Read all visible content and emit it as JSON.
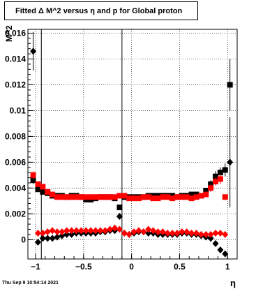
{
  "title": "Fitted Δ M^2 versus η and p for Global proton",
  "timestamp": "Thu Sep  9 10:54:14 2021",
  "chart_data": {
    "type": "scatter",
    "title": "Fitted Δ M^2 versus η and p for Global proton",
    "xlabel": "η",
    "ylabel": "M^2",
    "xlim": [
      -1.08,
      1.1
    ],
    "ylim": [
      -0.0015,
      0.0163
    ],
    "grid": true,
    "x_ticks": [
      -1,
      -0.5,
      0,
      0.5,
      1
    ],
    "x_tick_labels": [
      "−1",
      "−0.5",
      "0",
      "0.5",
      "1"
    ],
    "y_ticks": [
      0,
      0.002,
      0.004,
      0.006,
      0.008,
      0.01,
      0.012,
      0.014,
      0.016
    ],
    "y_tick_labels": [
      "0",
      "0.002",
      "0.004",
      "0.006",
      "0.008",
      "0.01",
      "0.012",
      "0.014",
      "0.016"
    ],
    "vertical_lines": [
      -0.94,
      -0.1
    ],
    "series": [
      {
        "marker": "square",
        "color": "#000000",
        "x": [
          -1.025,
          -0.975,
          -0.925,
          -0.875,
          -0.825,
          -0.775,
          -0.725,
          -0.675,
          -0.625,
          -0.575,
          -0.525,
          -0.475,
          -0.425,
          -0.375,
          -0.325,
          -0.275,
          -0.225,
          -0.175,
          -0.125,
          -0.075,
          -0.025,
          0.025,
          0.075,
          0.125,
          0.175,
          0.225,
          0.275,
          0.325,
          0.375,
          0.425,
          0.475,
          0.525,
          0.575,
          0.625,
          0.675,
          0.725,
          0.775,
          0.825,
          0.875,
          0.925,
          0.975,
          1.025
        ],
        "y": [
          0.0046,
          0.0039,
          0.0037,
          0.0036,
          0.0034,
          0.0034,
          0.0034,
          0.0033,
          0.0034,
          0.0034,
          0.0033,
          0.0031,
          0.0031,
          0.0032,
          0.0033,
          0.0033,
          0.0033,
          0.0032,
          0.0025,
          0.0033,
          0.0033,
          0.0033,
          0.0033,
          0.0033,
          0.0034,
          0.0034,
          0.0034,
          0.0034,
          0.0034,
          0.0034,
          0.0033,
          0.0034,
          0.0034,
          0.0035,
          0.0035,
          0.0034,
          0.0038,
          0.0043,
          0.0049,
          0.0052,
          0.0054,
          0.012
        ],
        "yerr": [
          0.0003,
          0.0001,
          0.0001,
          0.0001,
          0.0001,
          0.0001,
          0.0001,
          0.0001,
          0.0001,
          0.0001,
          0.0001,
          0.0001,
          0.0001,
          0.0001,
          0.0001,
          0.0001,
          0.0001,
          0.0001,
          0.0001,
          0.0001,
          0.0001,
          0.0001,
          0.0001,
          0.0001,
          0.0001,
          0.0001,
          0.0001,
          0.0001,
          0.0001,
          0.0001,
          0.0001,
          0.0001,
          0.0001,
          0.0001,
          0.0001,
          0.0001,
          0.0002,
          0.0003,
          0.0004,
          0.0004,
          0.0005,
          0.002
        ]
      },
      {
        "marker": "square",
        "color": "#ff0000",
        "x": [
          -1.025,
          -0.975,
          -0.925,
          -0.875,
          -0.825,
          -0.775,
          -0.725,
          -0.675,
          -0.625,
          -0.575,
          -0.525,
          -0.475,
          -0.425,
          -0.375,
          -0.325,
          -0.275,
          -0.225,
          -0.175,
          -0.125,
          -0.075,
          -0.025,
          0.025,
          0.075,
          0.125,
          0.175,
          0.225,
          0.275,
          0.325,
          0.375,
          0.425,
          0.475,
          0.525,
          0.575,
          0.625,
          0.675,
          0.725,
          0.775,
          0.825,
          0.875,
          0.925,
          0.975
        ],
        "y": [
          0.005,
          0.0043,
          0.0041,
          0.0037,
          0.0035,
          0.0033,
          0.0033,
          0.0033,
          0.0033,
          0.0033,
          0.0033,
          0.0033,
          0.0033,
          0.0033,
          0.0033,
          0.0033,
          0.0033,
          0.0033,
          0.0034,
          0.0034,
          0.0032,
          0.0032,
          0.0032,
          0.0033,
          0.0033,
          0.0032,
          0.0032,
          0.0033,
          0.0033,
          0.0032,
          0.0033,
          0.0033,
          0.0033,
          0.0032,
          0.0033,
          0.0034,
          0.0035,
          0.004,
          0.0045,
          0.0047,
          0.0033
        ],
        "yerr": [
          0.0003,
          0.0002,
          0.0002,
          0.0001,
          0.0001,
          0.0001,
          0.0001,
          0.0001,
          0.0001,
          0.0001,
          0.0001,
          0.0001,
          0.0001,
          0.0001,
          0.0001,
          0.0001,
          0.0001,
          0.0001,
          0.0001,
          0.0001,
          0.0001,
          0.0001,
          0.0001,
          0.0001,
          0.0001,
          0.0001,
          0.0001,
          0.0001,
          0.0001,
          0.0001,
          0.0001,
          0.0001,
          0.0001,
          0.0001,
          0.0001,
          0.0001,
          0.0002,
          0.0003,
          0.0003,
          0.0004,
          0.0002
        ]
      },
      {
        "marker": "diamond",
        "color": "#000000",
        "x": [
          -1.025,
          -0.975,
          -0.925,
          -0.875,
          -0.825,
          -0.775,
          -0.725,
          -0.675,
          -0.625,
          -0.575,
          -0.525,
          -0.475,
          -0.425,
          -0.375,
          -0.325,
          -0.275,
          -0.225,
          -0.175,
          -0.125,
          -0.075,
          -0.025,
          0.025,
          0.075,
          0.125,
          0.175,
          0.225,
          0.275,
          0.325,
          0.375,
          0.425,
          0.475,
          0.525,
          0.575,
          0.625,
          0.675,
          0.725,
          0.775,
          0.825,
          0.875,
          0.925,
          0.975,
          1.025
        ],
        "y": [
          0.0146,
          -0.0002,
          0.0001,
          0.0001,
          0.0001,
          0.0002,
          0.0003,
          0.0004,
          0.0004,
          0.0005,
          0.0005,
          0.0005,
          0.0005,
          0.0005,
          0.0006,
          0.0006,
          0.0007,
          0.0007,
          0.0018,
          0.0005,
          0.0004,
          0.0005,
          0.0006,
          0.0006,
          0.0005,
          0.0005,
          0.0004,
          0.0004,
          0.0004,
          0.0004,
          0.0004,
          0.0005,
          0.0005,
          0.0004,
          0.0004,
          0.0003,
          0.0002,
          0.0001,
          -0.0003,
          -0.0008,
          -0.0011,
          0.006
        ],
        "yerr": [
          0.0015,
          0.0002,
          0.0001,
          0.0001,
          0.0001,
          0.0001,
          0.0001,
          0.0001,
          0.0001,
          0.0001,
          0.0001,
          0.0001,
          0.0001,
          0.0001,
          0.0001,
          0.0001,
          0.0001,
          0.0001,
          0.0001,
          0.0001,
          0.0001,
          0.0001,
          0.0001,
          0.0001,
          0.0001,
          0.0001,
          0.0001,
          0.0001,
          0.0001,
          0.0001,
          0.0001,
          0.0001,
          0.0001,
          0.0001,
          0.0001,
          0.0001,
          0.0001,
          0.0001,
          0.0002,
          0.0002,
          0.0002,
          0.0035
        ]
      },
      {
        "marker": "diamond",
        "color": "#ff0000",
        "x": [
          -0.975,
          -0.925,
          -0.875,
          -0.825,
          -0.775,
          -0.725,
          -0.675,
          -0.625,
          -0.575,
          -0.525,
          -0.475,
          -0.425,
          -0.375,
          -0.325,
          -0.275,
          -0.225,
          -0.175,
          -0.125,
          -0.075,
          -0.025,
          0.025,
          0.075,
          0.125,
          0.175,
          0.225,
          0.275,
          0.325,
          0.375,
          0.425,
          0.475,
          0.525,
          0.575,
          0.625,
          0.675,
          0.725,
          0.775,
          0.825,
          0.875,
          0.925,
          0.975
        ],
        "y": [
          0.0005,
          0.0005,
          0.0006,
          0.0007,
          0.0006,
          0.0006,
          0.0007,
          0.0007,
          0.0007,
          0.0007,
          0.0007,
          0.0007,
          0.0007,
          0.0007,
          0.0007,
          0.0008,
          0.0009,
          0.0008,
          0.0005,
          0.0004,
          0.0006,
          0.0007,
          0.0006,
          0.0008,
          0.0007,
          0.0006,
          0.0006,
          0.0005,
          0.0005,
          0.0005,
          0.0006,
          0.0006,
          0.0005,
          0.0005,
          0.0004,
          0.0004,
          0.0004,
          0.0005,
          0.0005,
          0.0004
        ],
        "yerr": [
          0.0001,
          0.0001,
          0.0001,
          0.0001,
          0.0001,
          0.0001,
          0.0001,
          0.0001,
          0.0001,
          0.0001,
          0.0001,
          0.0001,
          0.0001,
          0.0001,
          0.0001,
          0.0001,
          0.0001,
          0.0001,
          0.0001,
          0.0001,
          0.0001,
          0.0001,
          0.0001,
          0.0001,
          0.0001,
          0.0001,
          0.0001,
          0.0001,
          0.0001,
          0.0001,
          0.0001,
          0.0001,
          0.0001,
          0.0001,
          0.0001,
          0.0001,
          0.0001,
          0.0001,
          0.0001,
          0.0001
        ]
      }
    ]
  }
}
